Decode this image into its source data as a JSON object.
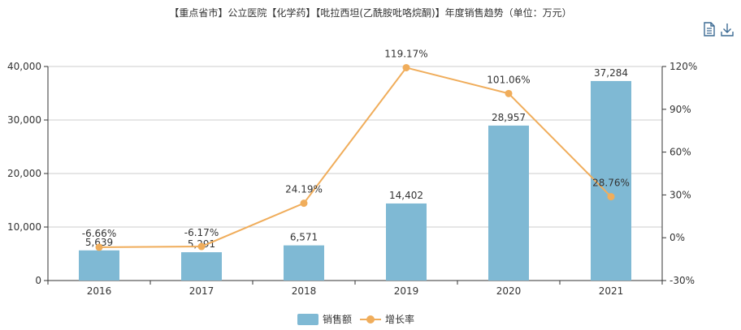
{
  "toolbox": {
    "icons": [
      "data-view-icon",
      "download-icon"
    ]
  },
  "chart_data": {
    "type": "bar+line",
    "title": "【重点省市】公立医院【化学药】【吡拉西坦(乙酰胺吡咯烷酮)】年度销售趋势（单位：万元）",
    "categories": [
      "2016",
      "2017",
      "2018",
      "2019",
      "2020",
      "2021"
    ],
    "series": [
      {
        "name": "销售额",
        "type": "bar",
        "axis": "left",
        "values": [
          5639,
          5291,
          6571,
          14402,
          28957,
          37284
        ],
        "labels": [
          "5,639",
          "5,291",
          "6,571",
          "14,402",
          "28,957",
          "37,284"
        ],
        "color": "#7fb9d4"
      },
      {
        "name": "增长率",
        "type": "line",
        "axis": "right",
        "values": [
          -6.66,
          -6.17,
          24.19,
          119.17,
          101.06,
          28.76
        ],
        "labels": [
          "-6.66%",
          "-6.17%",
          "24.19%",
          "119.17%",
          "101.06%",
          "28.76%"
        ],
        "color": "#f0ad5b"
      }
    ],
    "y_left": {
      "range": [
        0,
        40000
      ],
      "ticks": [
        "0",
        "10,000",
        "20,000",
        "30,000",
        "40,000"
      ]
    },
    "y_right": {
      "range": [
        -30,
        120
      ],
      "ticks": [
        "-30%",
        "0%",
        "30%",
        "60%",
        "90%",
        "120%"
      ]
    },
    "grid": true,
    "legend": "bottom-center"
  }
}
